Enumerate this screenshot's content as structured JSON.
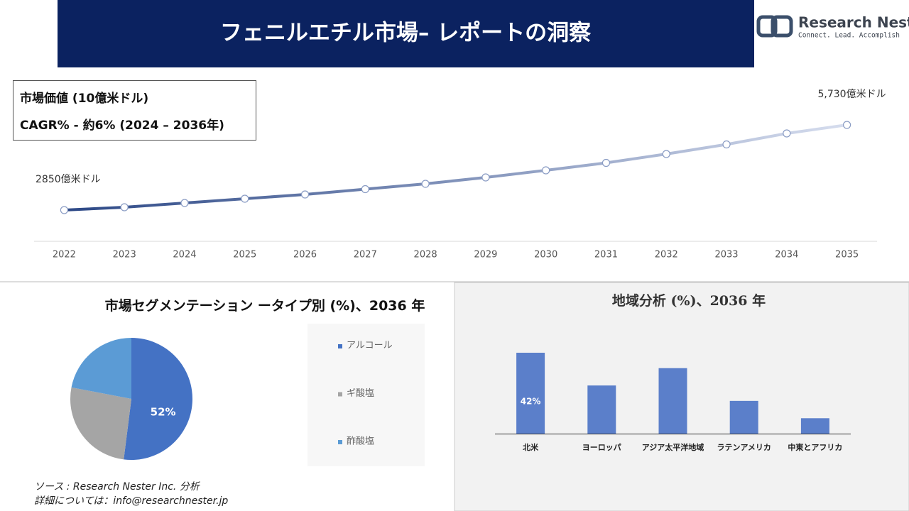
{
  "header": {
    "title": "フェニルエチル市場– レポートの洞察",
    "logo_name": "Research Nester",
    "logo_tagline": "Connect. Lead. Accomplish"
  },
  "info": {
    "line1": "市場価値 (10億米ドル)",
    "line2": "CAGR% - 約6% (2024 – 2036年)"
  },
  "chart_data": [
    {
      "type": "line",
      "x": [
        2022,
        2023,
        2024,
        2025,
        2026,
        2027,
        2028,
        2029,
        2030,
        2031,
        2032,
        2033,
        2034,
        2035
      ],
      "values": [
        2850,
        2946,
        3090,
        3234,
        3378,
        3558,
        3738,
        3954,
        4194,
        4446,
        4746,
        5070,
        5442,
        5730
      ],
      "value_labels": [
        "2850億米ドル",
        null,
        null,
        null,
        null,
        null,
        null,
        null,
        null,
        null,
        null,
        null,
        null,
        "5,730億米ドル"
      ],
      "xlim": [
        2021.5,
        2035.5
      ],
      "xticks": [
        2022,
        2023,
        2024,
        2025,
        2026,
        2027,
        2028,
        2029,
        2030,
        2031,
        2032,
        2033,
        2034,
        2035
      ],
      "gradient": [
        "#2c4886",
        "#d6ddee"
      ]
    },
    {
      "type": "pie",
      "title": "市場セグメンテーション ータイプ別 (%)、2036 年",
      "categories": [
        "アルコール",
        "ギ酸塩",
        "酢酸塩"
      ],
      "values": [
        52,
        26,
        22
      ],
      "value_labels": [
        "52%",
        null,
        null
      ],
      "colors": [
        "#4472c4",
        "#a5a5a5",
        "#5b9bd5"
      ]
    },
    {
      "type": "bar",
      "title": "地域分析 (%)、2036 年",
      "categories": [
        "北米",
        "ヨーロッパ",
        "アジア太平洋地域",
        "ラテンアメリカ",
        "中東とアフリカ"
      ],
      "values": [
        42,
        25,
        34,
        17,
        8
      ],
      "value_labels": [
        "42%",
        null,
        null,
        null,
        null
      ],
      "color": "#5b7fca"
    }
  ],
  "footer": {
    "source": "ソース : Research Nester Inc. 分析",
    "contact": "詳細については：info@researchnester.jp"
  }
}
